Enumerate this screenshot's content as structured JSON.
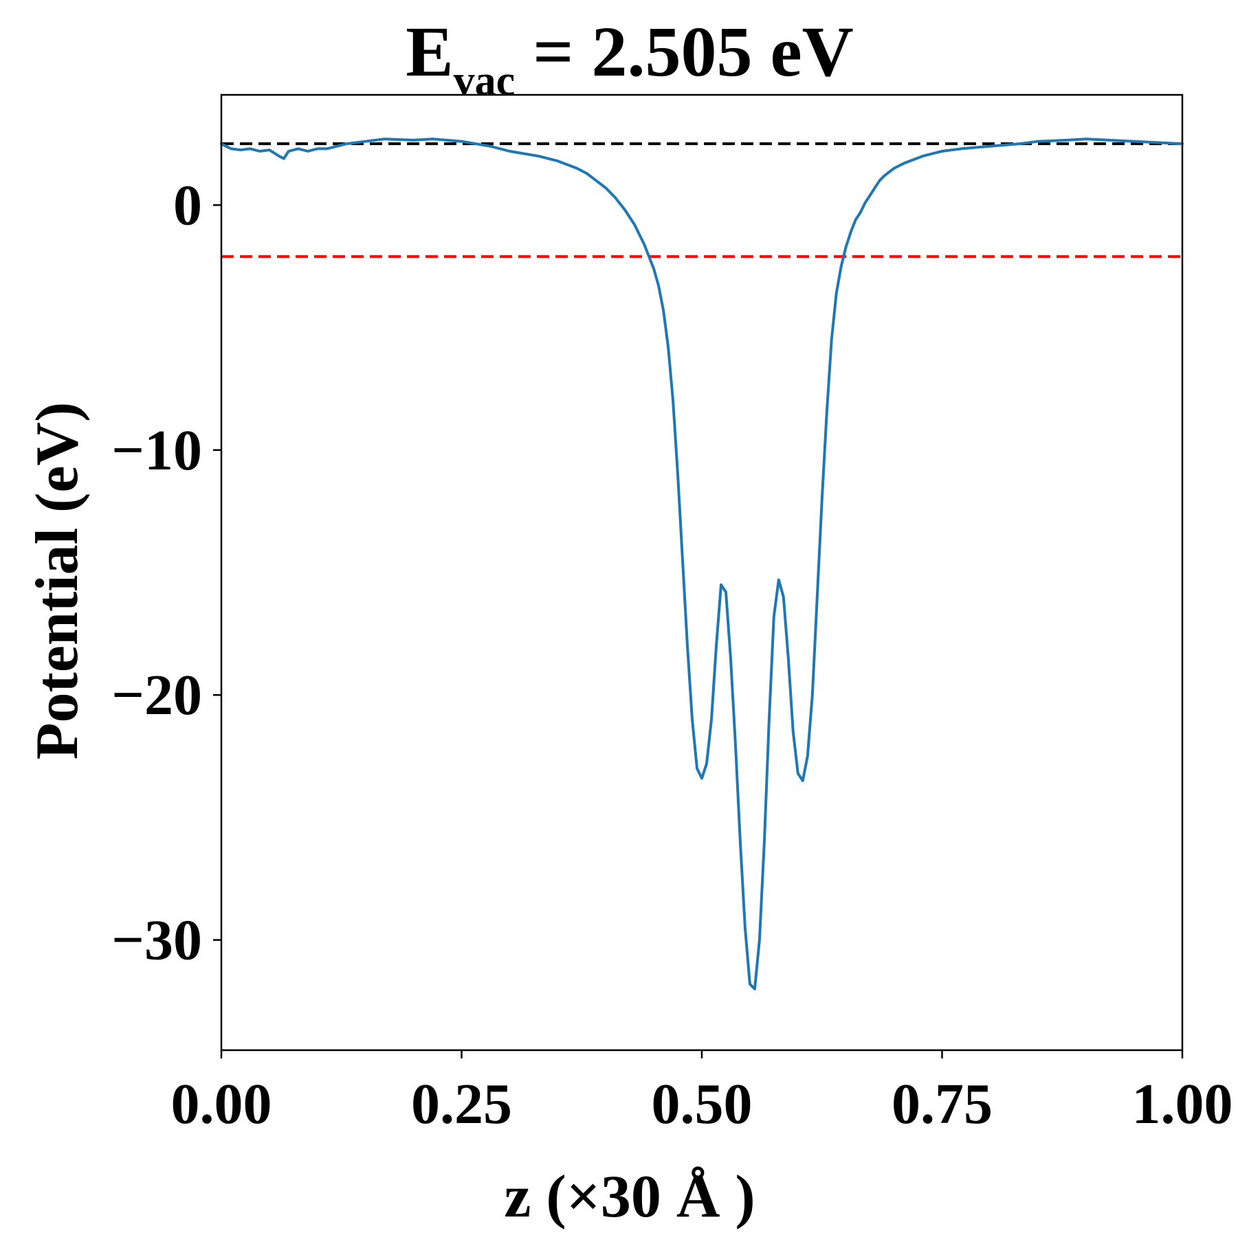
{
  "chart_data": {
    "type": "line",
    "title": {
      "main": "E",
      "subscript": "vac",
      "rest": " = 2.505 eV"
    },
    "xlabel": "z (×30 Å )",
    "ylabel": "Potential (eV)",
    "xlim": [
      0.0,
      1.0
    ],
    "ylim": [
      -34.5,
      4.5
    ],
    "xticks": [
      0.0,
      0.25,
      0.5,
      0.75,
      1.0
    ],
    "xtick_labels": [
      "0.00",
      "0.25",
      "0.50",
      "0.75",
      "1.00"
    ],
    "yticks": [
      0,
      -10,
      -20,
      -30
    ],
    "ytick_labels": [
      "0",
      "−10",
      "−20",
      "−30"
    ],
    "grid": false,
    "reference_lines": [
      {
        "y": 2.505,
        "color": "#000000",
        "style": "dashed"
      },
      {
        "y": -2.1,
        "color": "#ff0000",
        "style": "dashed"
      }
    ],
    "series": [
      {
        "color": "#1f77b4",
        "x": [
          0.0,
          0.01,
          0.02,
          0.03,
          0.04,
          0.05,
          0.06,
          0.065,
          0.07,
          0.08,
          0.09,
          0.1,
          0.11,
          0.12,
          0.13,
          0.15,
          0.17,
          0.2,
          0.22,
          0.25,
          0.28,
          0.3,
          0.33,
          0.35,
          0.37,
          0.38,
          0.39,
          0.4,
          0.41,
          0.42,
          0.43,
          0.44,
          0.45,
          0.455,
          0.46,
          0.465,
          0.47,
          0.475,
          0.48,
          0.485,
          0.49,
          0.495,
          0.5,
          0.505,
          0.51,
          0.515,
          0.52,
          0.525,
          0.53,
          0.535,
          0.54,
          0.545,
          0.55,
          0.555,
          0.56,
          0.565,
          0.57,
          0.575,
          0.58,
          0.585,
          0.59,
          0.595,
          0.6,
          0.605,
          0.61,
          0.615,
          0.62,
          0.625,
          0.63,
          0.635,
          0.64,
          0.645,
          0.65,
          0.655,
          0.66,
          0.665,
          0.67,
          0.675,
          0.68,
          0.685,
          0.69,
          0.7,
          0.71,
          0.72,
          0.73,
          0.74,
          0.75,
          0.77,
          0.8,
          0.83,
          0.85,
          0.88,
          0.9,
          0.95,
          1.0
        ],
        "y": [
          2.5,
          2.3,
          2.25,
          2.3,
          2.2,
          2.25,
          2.0,
          1.9,
          2.2,
          2.3,
          2.2,
          2.3,
          2.3,
          2.4,
          2.5,
          2.6,
          2.7,
          2.65,
          2.7,
          2.6,
          2.4,
          2.2,
          2.0,
          1.8,
          1.5,
          1.3,
          1.0,
          0.7,
          0.3,
          -0.2,
          -0.8,
          -1.6,
          -2.6,
          -3.3,
          -4.3,
          -5.8,
          -8.0,
          -11.0,
          -14.5,
          -18.0,
          -21.0,
          -23.0,
          -23.4,
          -22.8,
          -21.0,
          -18.0,
          -15.5,
          -15.8,
          -18.5,
          -22.0,
          -26.0,
          -29.5,
          -31.8,
          -32.0,
          -30.0,
          -26.0,
          -21.0,
          -16.8,
          -15.3,
          -16.0,
          -18.5,
          -21.5,
          -23.2,
          -23.5,
          -22.5,
          -20.0,
          -16.0,
          -12.0,
          -8.5,
          -5.5,
          -3.6,
          -2.5,
          -1.7,
          -1.1,
          -0.6,
          -0.3,
          0.1,
          0.4,
          0.7,
          1.0,
          1.2,
          1.5,
          1.7,
          1.85,
          2.0,
          2.1,
          2.2,
          2.3,
          2.4,
          2.5,
          2.6,
          2.65,
          2.7,
          2.6,
          2.5
        ]
      }
    ]
  }
}
